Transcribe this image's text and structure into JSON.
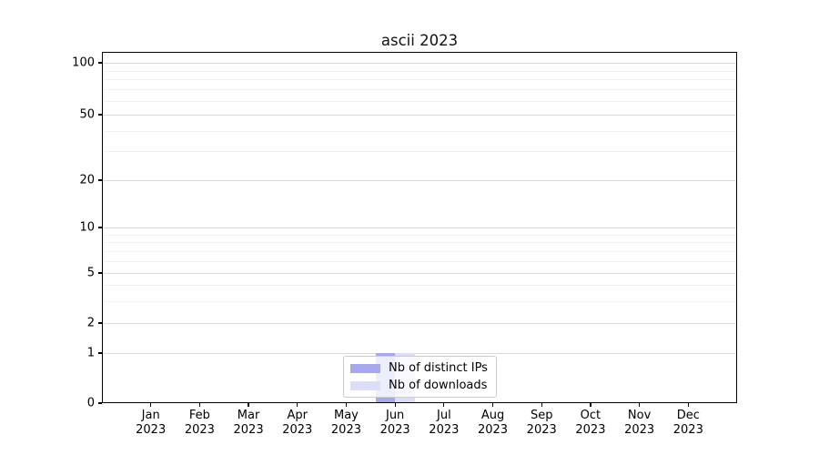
{
  "chart_data": {
    "type": "bar",
    "title": "ascii 2023",
    "x_tick_labels": [
      {
        "month": "Jan",
        "year": "2023"
      },
      {
        "month": "Feb",
        "year": "2023"
      },
      {
        "month": "Mar",
        "year": "2023"
      },
      {
        "month": "Apr",
        "year": "2023"
      },
      {
        "month": "May",
        "year": "2023"
      },
      {
        "month": "Jun",
        "year": "2023"
      },
      {
        "month": "Jul",
        "year": "2023"
      },
      {
        "month": "Aug",
        "year": "2023"
      },
      {
        "month": "Sep",
        "year": "2023"
      },
      {
        "month": "Oct",
        "year": "2023"
      },
      {
        "month": "Nov",
        "year": "2023"
      },
      {
        "month": "Dec",
        "year": "2023"
      }
    ],
    "series": [
      {
        "name": "Nb of distinct IPs",
        "color": "#a7a8ef",
        "values": [
          0,
          0,
          0,
          0,
          0,
          1,
          0,
          0,
          0,
          0,
          0,
          0
        ]
      },
      {
        "name": "Nb of downloads",
        "color": "#dcddf8",
        "values": [
          0,
          0,
          0,
          0,
          0,
          1,
          0,
          0,
          0,
          0,
          0,
          0
        ]
      }
    ],
    "yticks": [
      0,
      1,
      2,
      5,
      10,
      20,
      50,
      100
    ],
    "y_minor_ticks": [
      3,
      4,
      6,
      7,
      8,
      9,
      30,
      40,
      60,
      70,
      80,
      90
    ],
    "yscale": "symlog",
    "ylim": [
      0,
      110
    ],
    "grid": "horizontal major+minor",
    "legend_position": "bottom-center",
    "xlabel": "",
    "ylabel": ""
  }
}
